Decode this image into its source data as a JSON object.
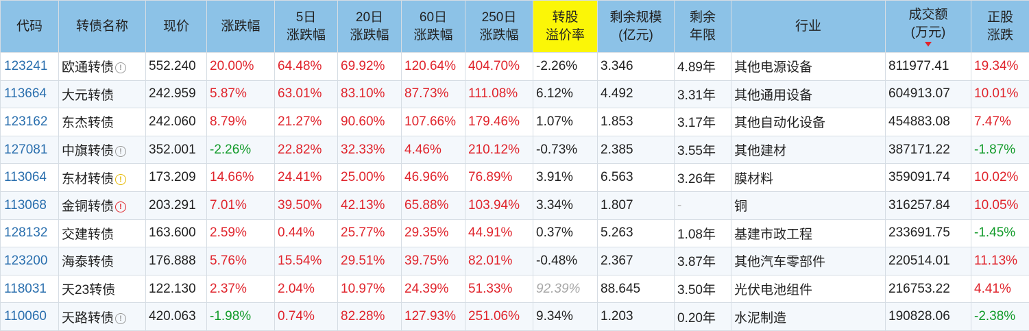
{
  "headers": [
    "代码",
    "转债名称",
    "现价",
    "涨跌幅",
    "5日\n涨跌幅",
    "20日\n涨跌幅",
    "60日\n涨跌幅",
    "250日\n涨跌幅",
    "转股\n溢价率",
    "剩余规模\n(亿元)",
    "剩余\n年限",
    "行业",
    "成交额\n(万元)",
    "正股\n涨跌"
  ],
  "highlight_header_index": 8,
  "sort_header_index": 12,
  "colors": {
    "header_bg": "#8cc2e7",
    "highlight_bg": "#fbf607",
    "up": "#e0242c",
    "down": "#129b2a",
    "code": "#2a6fae"
  },
  "rows": [
    {
      "code": "123241",
      "name": "欧通转债",
      "icon": "info",
      "price": "552.240",
      "chg": "20.00%",
      "chg5": "64.48%",
      "chg20": "69.92%",
      "chg60": "120.64%",
      "chg250": "404.70%",
      "premium": "-2.26%",
      "premium_dim": false,
      "scale": "3.346",
      "years": "4.89年",
      "industry": "其他电源设备",
      "volume": "811977.41",
      "stock_chg": "19.34%"
    },
    {
      "code": "113664",
      "name": "大元转债",
      "icon": "",
      "price": "242.959",
      "chg": "5.87%",
      "chg5": "63.01%",
      "chg20": "83.10%",
      "chg60": "87.73%",
      "chg250": "111.08%",
      "premium": "6.12%",
      "premium_dim": false,
      "scale": "4.492",
      "years": "3.31年",
      "industry": "其他通用设备",
      "volume": "604913.07",
      "stock_chg": "10.01%"
    },
    {
      "code": "123162",
      "name": "东杰转债",
      "icon": "",
      "price": "242.060",
      "chg": "8.79%",
      "chg5": "21.27%",
      "chg20": "90.60%",
      "chg60": "107.66%",
      "chg250": "179.46%",
      "premium": "1.07%",
      "premium_dim": false,
      "scale": "1.853",
      "years": "3.17年",
      "industry": "其他自动化设备",
      "volume": "454883.08",
      "stock_chg": "7.47%"
    },
    {
      "code": "127081",
      "name": "中旗转债",
      "icon": "info",
      "price": "352.001",
      "chg": "-2.26%",
      "chg5": "22.82%",
      "chg20": "32.33%",
      "chg60": "4.46%",
      "chg250": "210.12%",
      "premium": "-0.73%",
      "premium_dim": false,
      "scale": "2.385",
      "years": "3.55年",
      "industry": "其他建材",
      "volume": "387171.22",
      "stock_chg": "-1.87%"
    },
    {
      "code": "113064",
      "name": "东材转债",
      "icon": "warn",
      "price": "173.209",
      "chg": "14.66%",
      "chg5": "24.41%",
      "chg20": "25.00%",
      "chg60": "46.96%",
      "chg250": "76.89%",
      "premium": "3.91%",
      "premium_dim": false,
      "scale": "6.563",
      "years": "3.26年",
      "industry": "膜材料",
      "volume": "359091.74",
      "stock_chg": "10.02%"
    },
    {
      "code": "113068",
      "name": "金铜转债",
      "icon": "alert",
      "price": "203.291",
      "chg": "7.01%",
      "chg5": "39.50%",
      "chg20": "42.13%",
      "chg60": "65.88%",
      "chg250": "103.94%",
      "premium": "3.34%",
      "premium_dim": false,
      "scale": "1.807",
      "years": "-",
      "industry": "铜",
      "volume": "316257.84",
      "stock_chg": "10.05%"
    },
    {
      "code": "128132",
      "name": "交建转债",
      "icon": "",
      "price": "163.600",
      "chg": "2.59%",
      "chg5": "0.44%",
      "chg20": "25.77%",
      "chg60": "29.35%",
      "chg250": "44.91%",
      "premium": "0.37%",
      "premium_dim": false,
      "scale": "5.263",
      "years": "1.08年",
      "industry": "基建市政工程",
      "volume": "233691.75",
      "stock_chg": "-1.45%"
    },
    {
      "code": "123200",
      "name": "海泰转债",
      "icon": "",
      "price": "176.888",
      "chg": "5.76%",
      "chg5": "15.54%",
      "chg20": "29.51%",
      "chg60": "39.75%",
      "chg250": "82.01%",
      "premium": "-0.48%",
      "premium_dim": false,
      "scale": "2.367",
      "years": "3.87年",
      "industry": "其他汽车零部件",
      "volume": "220514.01",
      "stock_chg": "11.13%"
    },
    {
      "code": "118031",
      "name": "天23转债",
      "icon": "",
      "price": "122.130",
      "chg": "2.37%",
      "chg5": "2.04%",
      "chg20": "10.97%",
      "chg60": "24.39%",
      "chg250": "51.33%",
      "premium": "92.39%",
      "premium_dim": true,
      "scale": "88.645",
      "years": "3.50年",
      "industry": "光伏电池组件",
      "volume": "216753.22",
      "stock_chg": "4.41%"
    },
    {
      "code": "110060",
      "name": "天路转债",
      "icon": "info",
      "price": "420.063",
      "chg": "-1.98%",
      "chg5": "0.74%",
      "chg20": "82.28%",
      "chg60": "127.93%",
      "chg250": "251.06%",
      "premium": "9.34%",
      "premium_dim": false,
      "scale": "1.203",
      "years": "0.20年",
      "industry": "水泥制造",
      "volume": "190828.06",
      "stock_chg": "-2.38%"
    }
  ]
}
